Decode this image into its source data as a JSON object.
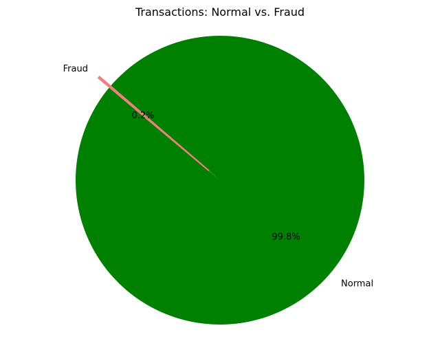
{
  "chart_data": {
    "type": "pie",
    "title": "Transactions: Normal vs. Fraud",
    "slices": [
      {
        "label": "Normal",
        "value": 99.8,
        "pct_label": "99.8%",
        "color": "#008000"
      },
      {
        "label": "Fraud",
        "value": 0.2,
        "pct_label": "0.2%",
        "color": "#F08080",
        "exploded": true
      }
    ],
    "start_angle_deg": 140,
    "legend": "none"
  }
}
